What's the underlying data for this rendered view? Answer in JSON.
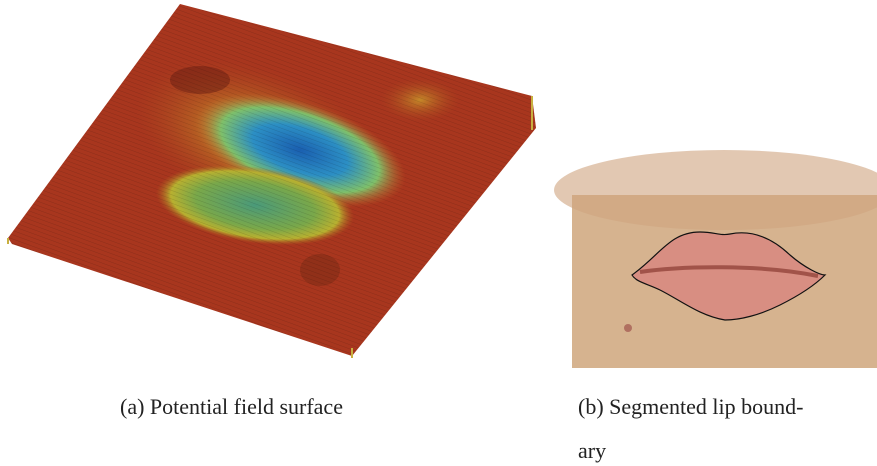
{
  "figure": {
    "subfigures": [
      {
        "caption_lines": [
          "(a) Potential field surface"
        ]
      },
      {
        "caption_lines": [
          "(b) Segmented lip bound-",
          "ary"
        ]
      }
    ]
  }
}
